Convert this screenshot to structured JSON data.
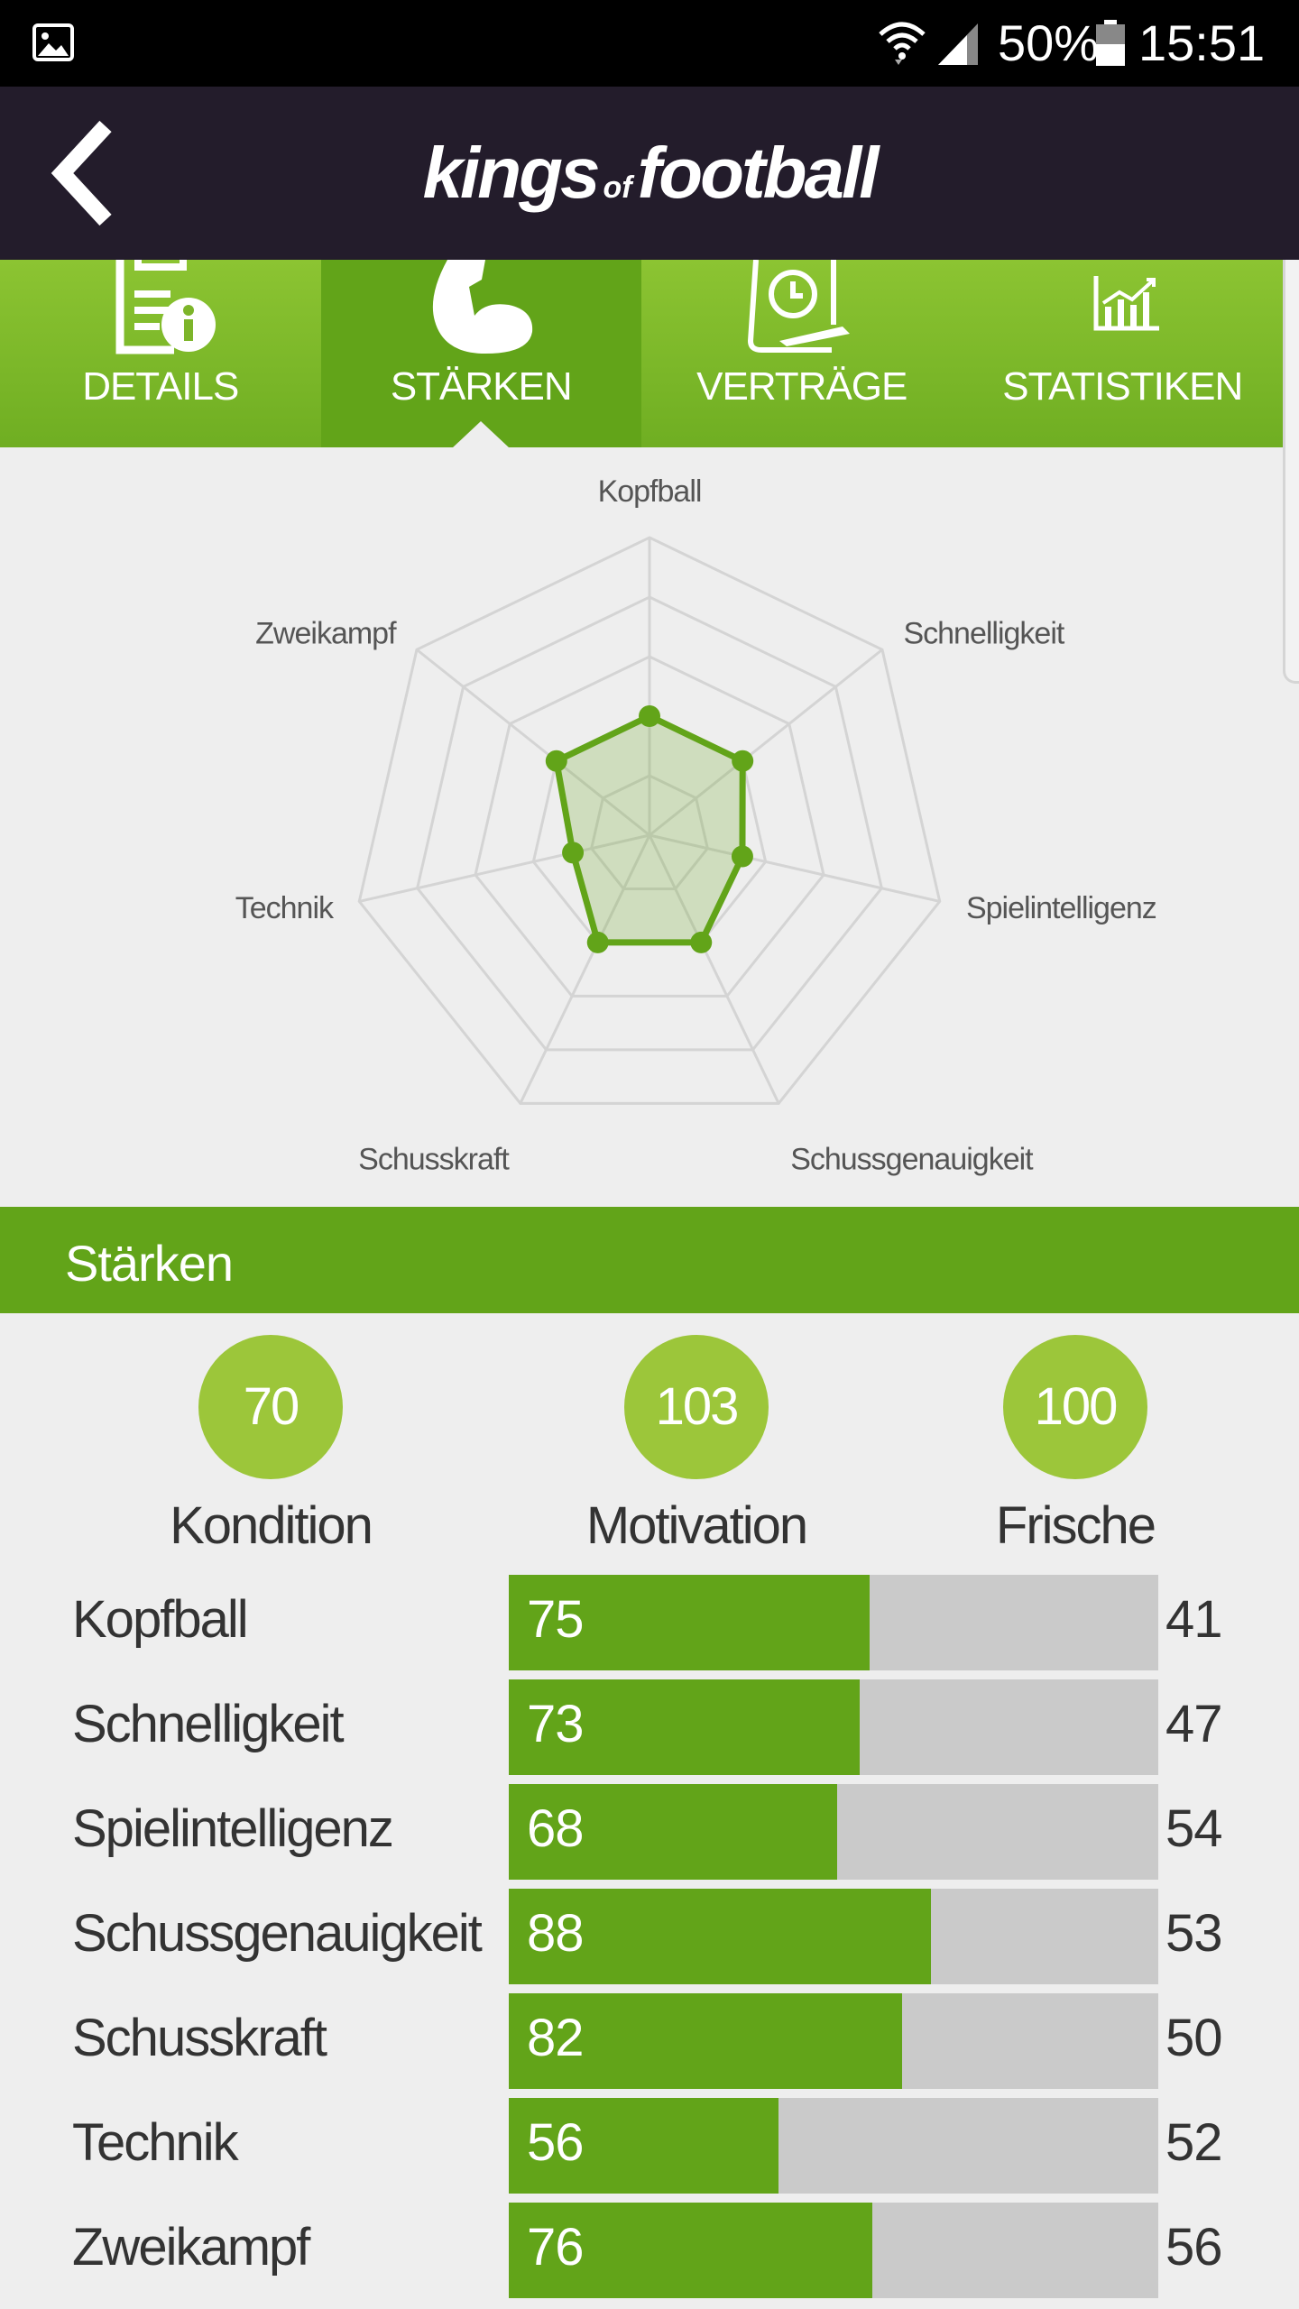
{
  "status_bar": {
    "battery_percent": "50%",
    "time": "15:51",
    "icons": [
      "image-icon",
      "wifi-icon",
      "signal-icon",
      "battery-icon"
    ]
  },
  "header": {
    "logo": {
      "main1": "kings",
      "small": "of",
      "main2": "football"
    },
    "back_icon": "chevron-left-icon"
  },
  "tabs": [
    {
      "label": "DETAILS",
      "icon": "clipboard-info-icon",
      "active": false
    },
    {
      "label": "STÄRKEN",
      "icon": "flexed-arm-icon",
      "active": true
    },
    {
      "label": "VERTRÄGE",
      "icon": "contract-clock-icon",
      "active": false
    },
    {
      "label": "STATISTIKEN",
      "icon": "bar-chart-icon",
      "active": false
    }
  ],
  "chart_data": {
    "type": "radar",
    "categories": [
      "Kopfball",
      "Schnelligkeit",
      "Spielintelligenz",
      "Schussgenauigkeit",
      "Schusskraft",
      "Technik",
      "Zweikampf"
    ],
    "values": [
      50,
      50,
      40,
      50,
      50,
      33,
      50
    ],
    "rlim": [
      0,
      125
    ],
    "grid_rings": 5,
    "fill_color": "#62a419"
  },
  "section": {
    "title": "Stärken"
  },
  "summary": [
    {
      "value": "70",
      "label": "Kondition"
    },
    {
      "value": "103",
      "label": "Motivation"
    },
    {
      "value": "100",
      "label": "Frische"
    }
  ],
  "attributes": [
    {
      "name": "Kopfball",
      "value": "75",
      "fill": 0.555,
      "secondary": "41"
    },
    {
      "name": "Schnelligkeit",
      "value": "73",
      "fill": 0.54,
      "secondary": "47"
    },
    {
      "name": "Spielintelligenz",
      "value": "68",
      "fill": 0.505,
      "secondary": "54"
    },
    {
      "name": "Schussgenauigkeit",
      "value": "88",
      "fill": 0.65,
      "secondary": "53"
    },
    {
      "name": "Schusskraft",
      "value": "82",
      "fill": 0.605,
      "secondary": "50"
    },
    {
      "name": "Technik",
      "value": "56",
      "fill": 0.415,
      "secondary": "52"
    },
    {
      "name": "Zweikampf",
      "value": "76",
      "fill": 0.56,
      "secondary": "56"
    }
  ],
  "colors": {
    "header_bg": "#231c2b",
    "accent_green": "#62a419",
    "circle_green": "#9cc63a",
    "bar_track": "#cacaca"
  }
}
